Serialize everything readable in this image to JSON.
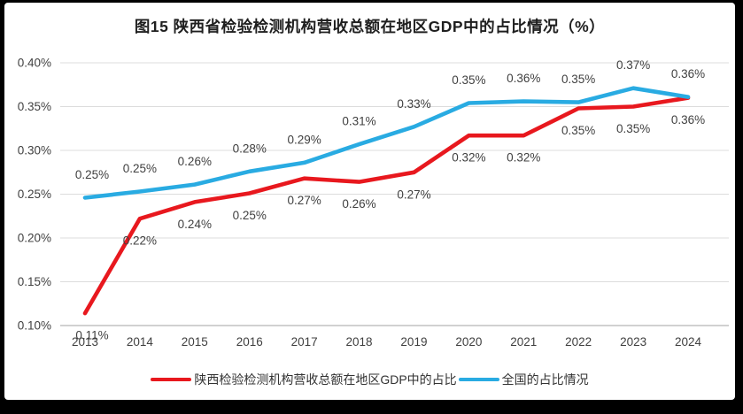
{
  "title": "图15 陕西省检验检测机构营收总额在地区GDP中的占比情况（%）",
  "chart_data": {
    "type": "line",
    "title": "图15 陕西省检验检测机构营收总额在地区GDP中的占比情况（%）",
    "categories": [
      "2013",
      "2014",
      "2015",
      "2016",
      "2017",
      "2018",
      "2019",
      "2020",
      "2021",
      "2022",
      "2023",
      "2024"
    ],
    "y_axis": {
      "min": 0.1,
      "max": 0.4,
      "step": 0.05,
      "tick_labels": [
        "0.10%",
        "0.15%",
        "0.20%",
        "0.25%",
        "0.30%",
        "0.35%",
        "0.40%"
      ],
      "grid": true
    },
    "legend_position": "bottom",
    "series": [
      {
        "id": "shaanxi",
        "name": "陕西检验检测机构营收总额在地区GDP中的占比",
        "color": "#E8181E",
        "label_side": "below",
        "values": [
          0.11,
          0.22,
          0.24,
          0.25,
          0.27,
          0.26,
          0.27,
          0.32,
          0.32,
          0.35,
          0.35,
          0.36
        ],
        "labels": [
          "0.11%",
          "0.22%",
          "0.24%",
          "0.25%",
          "0.27%",
          "0.26%",
          "0.27%",
          "0.32%",
          "0.32%",
          "0.35%",
          "0.35%",
          "0.36%"
        ],
        "plot_values": [
          0.114,
          0.222,
          0.241,
          0.251,
          0.268,
          0.264,
          0.275,
          0.317,
          0.317,
          0.348,
          0.35,
          0.36
        ]
      },
      {
        "id": "national",
        "name": "全国的占比情况",
        "color": "#29ABE2",
        "label_side": "above",
        "values": [
          0.25,
          0.25,
          0.26,
          0.28,
          0.29,
          0.31,
          0.33,
          0.35,
          0.36,
          0.35,
          0.37,
          0.36
        ],
        "labels": [
          "0.25%",
          "0.25%",
          "0.26%",
          "0.28%",
          "0.29%",
          "0.31%",
          "0.33%",
          "0.35%",
          "0.36%",
          "0.35%",
          "0.37%",
          "0.36%"
        ],
        "plot_values": [
          0.246,
          0.253,
          0.261,
          0.276,
          0.286,
          0.307,
          0.327,
          0.354,
          0.356,
          0.355,
          0.371,
          0.361
        ]
      }
    ]
  },
  "colors": {
    "grid_line": "#dcdcdc",
    "axis_line": "#c2c2c2",
    "tick_text": "#404040",
    "title_text": "#1f1f1f",
    "frame_bg": "#000000",
    "card_bg": "#ffffff"
  }
}
